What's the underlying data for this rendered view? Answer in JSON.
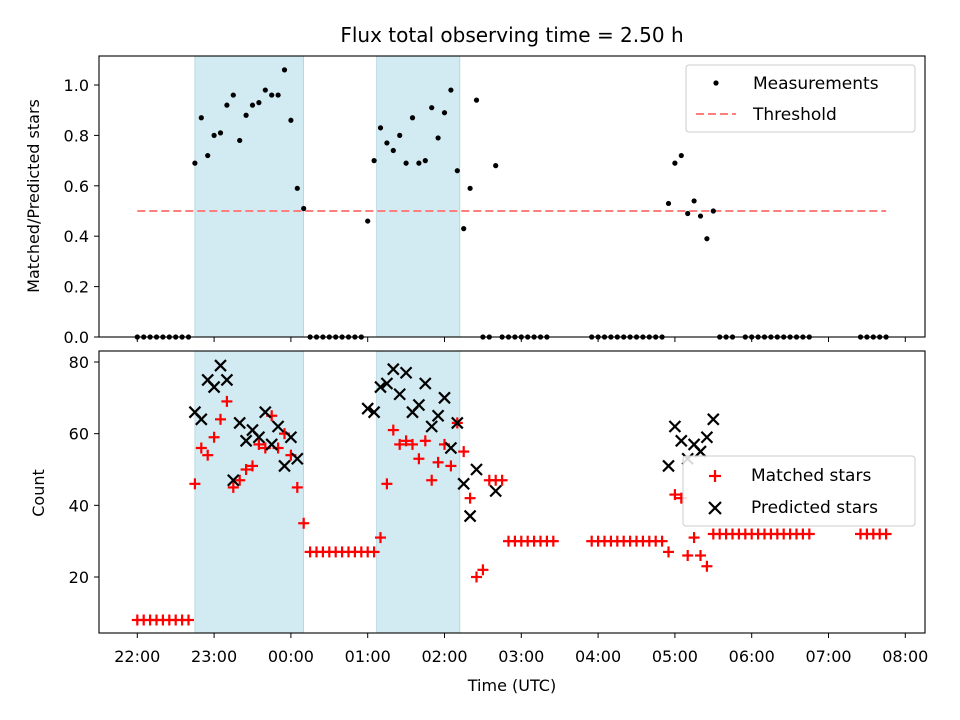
{
  "chart_data": [
    {
      "type": "scatter",
      "title": "Flux total observing time = 2.50 h",
      "xlabel": "",
      "ylabel": "Matched/Predicted stars",
      "ylim": [
        0,
        1.1
      ],
      "yticks": [
        0.0,
        0.2,
        0.4,
        0.6,
        0.8,
        1.0
      ],
      "ytick_labels": [
        "0.0",
        "0.2",
        "0.4",
        "0.6",
        "0.8",
        "1.0"
      ],
      "xlim_hours": [
        21.5,
        8.25
      ],
      "legend": {
        "position": "top-right",
        "entries": [
          "Measurements",
          "Threshold"
        ]
      },
      "colors": {
        "measurements": "#000000",
        "threshold": "#ff7f7f",
        "band": "#add8e6"
      },
      "shaded_intervals": [
        [
          "22:45",
          "00:10"
        ],
        [
          "01:07",
          "02:12"
        ]
      ],
      "threshold": {
        "name": "Threshold",
        "y": 0.5,
        "x_start": "22:00",
        "x_end": "07:45"
      },
      "series": [
        {
          "name": "Measurements",
          "points": [
            [
              "22:00",
              0
            ],
            [
              "22:05",
              0
            ],
            [
              "22:10",
              0
            ],
            [
              "22:15",
              0
            ],
            [
              "22:20",
              0
            ],
            [
              "22:25",
              0
            ],
            [
              "22:30",
              0
            ],
            [
              "22:35",
              0
            ],
            [
              "22:40",
              0
            ],
            [
              "22:45",
              0.69
            ],
            [
              "22:50",
              0.87
            ],
            [
              "22:55",
              0.72
            ],
            [
              "23:00",
              0.8
            ],
            [
              "23:05",
              0.81
            ],
            [
              "23:10",
              0.92
            ],
            [
              "23:15",
              0.96
            ],
            [
              "23:20",
              0.78
            ],
            [
              "23:25",
              0.88
            ],
            [
              "23:30",
              0.92
            ],
            [
              "23:35",
              0.93
            ],
            [
              "23:40",
              0.98
            ],
            [
              "23:45",
              0.96
            ],
            [
              "23:50",
              0.96
            ],
            [
              "23:55",
              1.06
            ],
            [
              "00:00",
              0.86
            ],
            [
              "00:05",
              0.59
            ],
            [
              "00:10",
              0.51
            ],
            [
              "00:15",
              0
            ],
            [
              "00:20",
              0
            ],
            [
              "00:25",
              0
            ],
            [
              "00:30",
              0
            ],
            [
              "00:35",
              0
            ],
            [
              "00:40",
              0
            ],
            [
              "00:45",
              0
            ],
            [
              "00:50",
              0
            ],
            [
              "00:55",
              0
            ],
            [
              "01:00",
              0.46
            ],
            [
              "01:05",
              0.7
            ],
            [
              "01:10",
              0.83
            ],
            [
              "01:15",
              0.77
            ],
            [
              "01:20",
              0.74
            ],
            [
              "01:25",
              0.8
            ],
            [
              "01:30",
              0.69
            ],
            [
              "01:35",
              0.87
            ],
            [
              "01:40",
              0.69
            ],
            [
              "01:45",
              0.7
            ],
            [
              "01:50",
              0.91
            ],
            [
              "01:55",
              0.79
            ],
            [
              "02:00",
              0.89
            ],
            [
              "02:05",
              0.98
            ],
            [
              "02:10",
              0.66
            ],
            [
              "02:15",
              0.43
            ],
            [
              "02:20",
              0.59
            ],
            [
              "02:25",
              0.94
            ],
            [
              "02:30",
              0
            ],
            [
              "02:35",
              0
            ],
            [
              "02:40",
              0.68
            ],
            [
              "02:45",
              0
            ],
            [
              "02:50",
              0
            ],
            [
              "02:55",
              0
            ],
            [
              "03:00",
              0
            ],
            [
              "03:05",
              0
            ],
            [
              "03:10",
              0
            ],
            [
              "03:15",
              0
            ],
            [
              "03:20",
              0
            ],
            [
              "03:55",
              0
            ],
            [
              "04:00",
              0
            ],
            [
              "04:05",
              0
            ],
            [
              "04:10",
              0
            ],
            [
              "04:15",
              0
            ],
            [
              "04:20",
              0
            ],
            [
              "04:25",
              0
            ],
            [
              "04:30",
              0
            ],
            [
              "04:35",
              0
            ],
            [
              "04:40",
              0
            ],
            [
              "04:45",
              0
            ],
            [
              "04:50",
              0
            ],
            [
              "04:55",
              0.53
            ],
            [
              "05:00",
              0.69
            ],
            [
              "05:05",
              0.72
            ],
            [
              "05:10",
              0.49
            ],
            [
              "05:15",
              0.54
            ],
            [
              "05:20",
              0.48
            ],
            [
              "05:25",
              0.39
            ],
            [
              "05:30",
              0.5
            ],
            [
              "05:35",
              0
            ],
            [
              "05:40",
              0
            ],
            [
              "05:45",
              0
            ],
            [
              "05:55",
              0
            ],
            [
              "06:00",
              0
            ],
            [
              "06:05",
              0
            ],
            [
              "06:10",
              0
            ],
            [
              "06:15",
              0
            ],
            [
              "06:20",
              0
            ],
            [
              "06:25",
              0
            ],
            [
              "06:30",
              0
            ],
            [
              "06:35",
              0
            ],
            [
              "06:40",
              0
            ],
            [
              "06:45",
              0
            ],
            [
              "07:25",
              0
            ],
            [
              "07:30",
              0
            ],
            [
              "07:35",
              0
            ],
            [
              "07:40",
              0
            ],
            [
              "07:45",
              0
            ]
          ]
        }
      ]
    },
    {
      "type": "scatter",
      "title": "",
      "xlabel": "Time (UTC)",
      "ylabel": "Count",
      "ylim": [
        4.5,
        83
      ],
      "yticks": [
        20,
        40,
        60,
        80
      ],
      "ytick_labels": [
        "20",
        "40",
        "60",
        "80"
      ],
      "xticks": [
        "22:00",
        "23:00",
        "00:00",
        "01:00",
        "02:00",
        "03:00",
        "04:00",
        "05:00",
        "06:00",
        "07:00",
        "08:00"
      ],
      "legend": {
        "position": "center-right",
        "entries": [
          "Matched stars",
          "Predicted stars"
        ]
      },
      "colors": {
        "matched": "#ff0000",
        "predicted": "#000000",
        "band": "#add8e6"
      },
      "series": [
        {
          "name": "Matched stars",
          "points": [
            [
              "22:00",
              8
            ],
            [
              "22:05",
              8
            ],
            [
              "22:10",
              8
            ],
            [
              "22:15",
              8
            ],
            [
              "22:20",
              8
            ],
            [
              "22:25",
              8
            ],
            [
              "22:30",
              8
            ],
            [
              "22:35",
              8
            ],
            [
              "22:40",
              8
            ],
            [
              "22:45",
              46
            ],
            [
              "22:50",
              56
            ],
            [
              "22:55",
              54
            ],
            [
              "23:00",
              59
            ],
            [
              "23:05",
              64
            ],
            [
              "23:10",
              69
            ],
            [
              "23:15",
              45
            ],
            [
              "23:20",
              47
            ],
            [
              "23:25",
              50
            ],
            [
              "23:30",
              51
            ],
            [
              "23:35",
              57
            ],
            [
              "23:40",
              56
            ],
            [
              "23:45",
              65
            ],
            [
              "23:50",
              56
            ],
            [
              "23:55",
              60
            ],
            [
              "00:00",
              54
            ],
            [
              "00:05",
              45
            ],
            [
              "00:10",
              35
            ],
            [
              "00:15",
              27
            ],
            [
              "00:20",
              27
            ],
            [
              "00:25",
              27
            ],
            [
              "00:30",
              27
            ],
            [
              "00:35",
              27
            ],
            [
              "00:40",
              27
            ],
            [
              "00:45",
              27
            ],
            [
              "00:50",
              27
            ],
            [
              "00:55",
              27
            ],
            [
              "01:00",
              27
            ],
            [
              "01:05",
              27
            ],
            [
              "01:10",
              31
            ],
            [
              "01:15",
              46
            ],
            [
              "01:20",
              61
            ],
            [
              "01:25",
              57
            ],
            [
              "01:30",
              58
            ],
            [
              "01:35",
              57
            ],
            [
              "01:40",
              53
            ],
            [
              "01:45",
              58
            ],
            [
              "01:50",
              47
            ],
            [
              "01:55",
              52
            ],
            [
              "02:00",
              57
            ],
            [
              "02:05",
              51
            ],
            [
              "02:10",
              63
            ],
            [
              "02:15",
              55
            ],
            [
              "02:20",
              42
            ],
            [
              "02:25",
              20
            ],
            [
              "02:30",
              22
            ],
            [
              "02:35",
              47
            ],
            [
              "02:40",
              47
            ],
            [
              "02:45",
              47
            ],
            [
              "02:50",
              30
            ],
            [
              "02:55",
              30
            ],
            [
              "03:00",
              30
            ],
            [
              "03:05",
              30
            ],
            [
              "03:10",
              30
            ],
            [
              "03:15",
              30
            ],
            [
              "03:20",
              30
            ],
            [
              "03:25",
              30
            ],
            [
              "03:55",
              30
            ],
            [
              "04:00",
              30
            ],
            [
              "04:05",
              30
            ],
            [
              "04:10",
              30
            ],
            [
              "04:15",
              30
            ],
            [
              "04:20",
              30
            ],
            [
              "04:25",
              30
            ],
            [
              "04:30",
              30
            ],
            [
              "04:35",
              30
            ],
            [
              "04:40",
              30
            ],
            [
              "04:45",
              30
            ],
            [
              "04:50",
              30
            ],
            [
              "04:55",
              27
            ],
            [
              "05:00",
              43
            ],
            [
              "05:05",
              42
            ],
            [
              "05:10",
              26
            ],
            [
              "05:15",
              31
            ],
            [
              "05:20",
              26
            ],
            [
              "05:25",
              23
            ],
            [
              "05:30",
              32
            ],
            [
              "05:35",
              32
            ],
            [
              "05:40",
              32
            ],
            [
              "05:45",
              32
            ],
            [
              "05:50",
              32
            ],
            [
              "05:55",
              32
            ],
            [
              "06:00",
              32
            ],
            [
              "06:05",
              32
            ],
            [
              "06:10",
              32
            ],
            [
              "06:15",
              32
            ],
            [
              "06:20",
              32
            ],
            [
              "06:25",
              32
            ],
            [
              "06:30",
              32
            ],
            [
              "06:35",
              32
            ],
            [
              "06:40",
              32
            ],
            [
              "06:45",
              32
            ],
            [
              "07:25",
              32
            ],
            [
              "07:30",
              32
            ],
            [
              "07:35",
              32
            ],
            [
              "07:40",
              32
            ],
            [
              "07:45",
              32
            ]
          ]
        },
        {
          "name": "Predicted stars",
          "points": [
            [
              "22:45",
              66
            ],
            [
              "22:50",
              64
            ],
            [
              "22:55",
              75
            ],
            [
              "23:00",
              73
            ],
            [
              "23:05",
              79
            ],
            [
              "23:10",
              75
            ],
            [
              "23:15",
              47
            ],
            [
              "23:20",
              63
            ],
            [
              "23:25",
              58
            ],
            [
              "23:30",
              61
            ],
            [
              "23:35",
              59
            ],
            [
              "23:40",
              66
            ],
            [
              "23:45",
              57
            ],
            [
              "23:50",
              62
            ],
            [
              "23:55",
              51
            ],
            [
              "00:00",
              59
            ],
            [
              "00:05",
              53
            ],
            [
              "01:00",
              67
            ],
            [
              "01:05",
              66
            ],
            [
              "01:10",
              73
            ],
            [
              "01:15",
              74
            ],
            [
              "01:20",
              78
            ],
            [
              "01:25",
              71
            ],
            [
              "01:30",
              77
            ],
            [
              "01:35",
              66
            ],
            [
              "01:40",
              68
            ],
            [
              "01:45",
              74
            ],
            [
              "01:50",
              62
            ],
            [
              "01:55",
              65
            ],
            [
              "02:00",
              70
            ],
            [
              "02:05",
              56
            ],
            [
              "02:10",
              63
            ],
            [
              "02:15",
              46
            ],
            [
              "02:20",
              37
            ],
            [
              "02:25",
              50
            ],
            [
              "02:40",
              44
            ],
            [
              "04:55",
              51
            ],
            [
              "05:00",
              62
            ],
            [
              "05:05",
              58
            ],
            [
              "05:10",
              53
            ],
            [
              "05:15",
              57
            ],
            [
              "05:20",
              55
            ],
            [
              "05:25",
              59
            ],
            [
              "05:30",
              64
            ]
          ]
        }
      ]
    }
  ]
}
